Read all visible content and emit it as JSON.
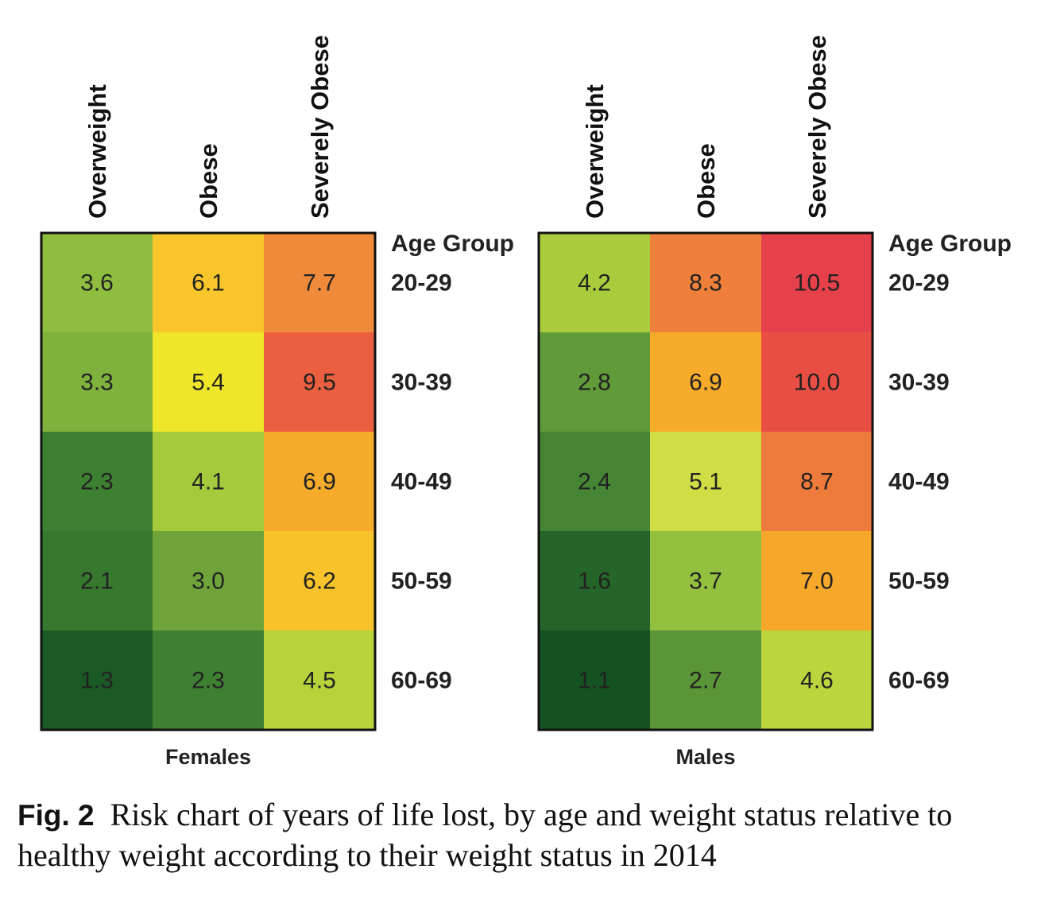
{
  "chart_data": [
    {
      "type": "heatmap",
      "panel_label": "Females",
      "columns": [
        "Overweight",
        "Obese",
        "Severely Obese"
      ],
      "row_header": "Age Group",
      "rows": [
        "20-29",
        "30-39",
        "40-49",
        "50-59",
        "60-69"
      ],
      "values": [
        [
          3.6,
          6.1,
          7.7
        ],
        [
          3.3,
          5.4,
          9.5
        ],
        [
          2.3,
          4.1,
          6.9
        ],
        [
          2.1,
          3.0,
          6.2
        ],
        [
          1.3,
          2.3,
          4.5
        ]
      ],
      "value_labels": [
        [
          "3.6",
          "6.1",
          "7.7"
        ],
        [
          "3.3",
          "5.4",
          "9.5"
        ],
        [
          "2.3",
          "4.1",
          "6.9"
        ],
        [
          "2.1",
          "3.0",
          "6.2"
        ],
        [
          "1.3",
          "2.3",
          "4.5"
        ]
      ],
      "color_scale": "green-yellow-red"
    },
    {
      "type": "heatmap",
      "panel_label": "Males",
      "columns": [
        "Overweight",
        "Obese",
        "Severely Obese"
      ],
      "row_header": "Age Group",
      "rows": [
        "20-29",
        "30-39",
        "40-49",
        "50-59",
        "60-69"
      ],
      "values": [
        [
          4.2,
          8.3,
          10.5
        ],
        [
          2.8,
          6.9,
          10.0
        ],
        [
          2.4,
          5.1,
          8.7
        ],
        [
          1.6,
          3.7,
          7.0
        ],
        [
          1.1,
          2.7,
          4.6
        ]
      ],
      "value_labels": [
        [
          "4.2",
          "8.3",
          "10.5"
        ],
        [
          "2.8",
          "6.9",
          "10.0"
        ],
        [
          "2.4",
          "5.1",
          "8.7"
        ],
        [
          "1.6",
          "3.7",
          "7.0"
        ],
        [
          "1.1",
          "2.7",
          "4.6"
        ]
      ],
      "color_scale": "green-yellow-red"
    }
  ],
  "color_stops": [
    {
      "value": 1.1,
      "color": "#145222"
    },
    {
      "value": 2.3,
      "color": "#3e8032"
    },
    {
      "value": 3.0,
      "color": "#6fa43a"
    },
    {
      "value": 3.6,
      "color": "#8fbd3f"
    },
    {
      "value": 4.5,
      "color": "#b6d43a"
    },
    {
      "value": 5.1,
      "color": "#cfde45"
    },
    {
      "value": 5.4,
      "color": "#efe62a"
    },
    {
      "value": 6.1,
      "color": "#f8c52a"
    },
    {
      "value": 7.0,
      "color": "#f6a82a"
    },
    {
      "value": 7.7,
      "color": "#ef8a3a"
    },
    {
      "value": 8.7,
      "color": "#ee7a3b"
    },
    {
      "value": 10.0,
      "color": "#e94e44"
    },
    {
      "value": 10.5,
      "color": "#e6404a"
    }
  ],
  "caption": {
    "label": "Fig. 2",
    "text": "Risk chart of years of life lost, by age and weight status relative to healthy weight according to their weight status in 2014"
  }
}
